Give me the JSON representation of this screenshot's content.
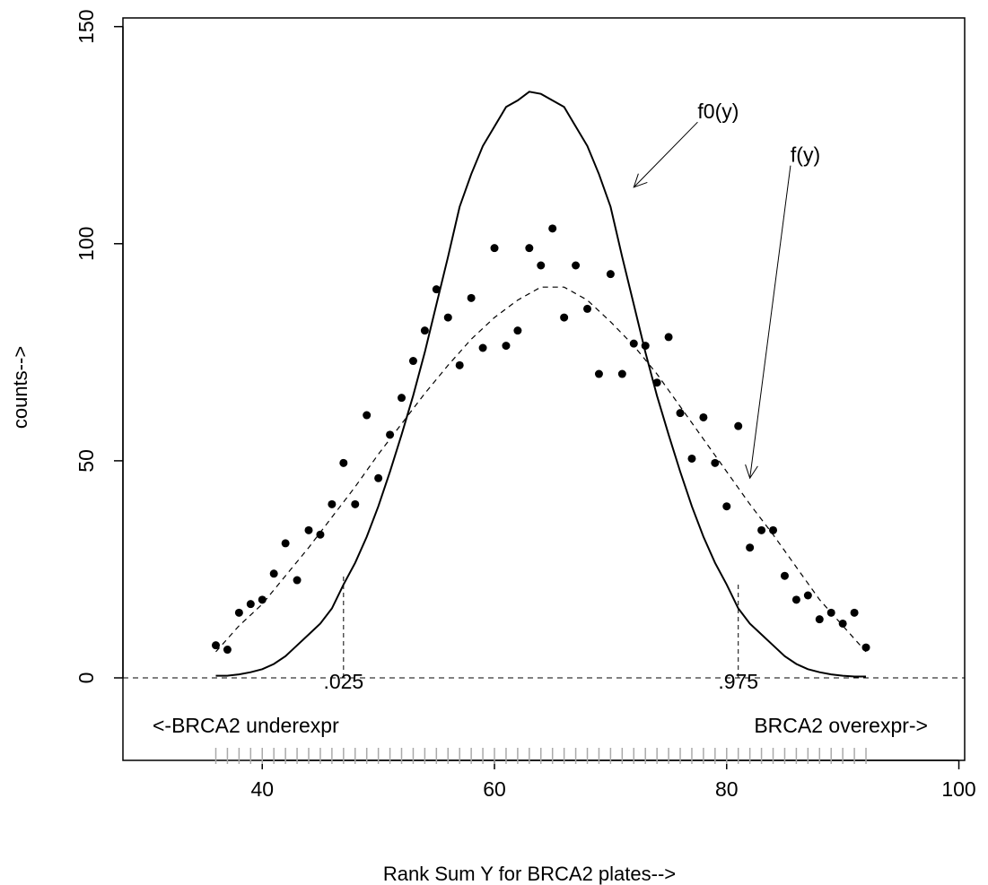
{
  "chart_data": {
    "type": "scatter",
    "title": "",
    "xlabel": "Rank Sum Y for BRCA2 plates-->",
    "ylabel": "counts-->",
    "xlim": [
      28,
      100.5
    ],
    "ylim": [
      -19,
      152
    ],
    "x_ticks": [
      40,
      60,
      80,
      100
    ],
    "y_ticks": [
      0,
      50,
      100,
      150
    ],
    "grid": false,
    "legend": "none",
    "series": [
      {
        "kind": "points",
        "x": [
          36,
          37,
          38,
          39,
          40,
          41,
          42,
          43,
          44,
          45,
          46,
          47,
          48,
          49,
          50,
          51,
          52,
          53,
          54,
          55,
          56,
          57,
          58,
          59,
          60,
          61,
          62,
          63,
          64,
          65,
          66,
          67,
          68,
          69,
          70,
          71,
          72,
          73,
          74,
          75,
          76,
          77,
          78,
          79,
          80,
          81,
          82,
          83,
          84,
          85,
          86,
          87,
          88,
          89,
          90,
          91,
          92
        ],
        "values": [
          7.5,
          6.5,
          15,
          17,
          18,
          24,
          31,
          22.5,
          34,
          33,
          40,
          49.5,
          40,
          60.5,
          46,
          56,
          64.5,
          73,
          80,
          89.5,
          83,
          72,
          87.5,
          76,
          99,
          76.5,
          80,
          99,
          95,
          103.5,
          83,
          95,
          85,
          70,
          93,
          70,
          77,
          76.5,
          68,
          78.5,
          61,
          50.5,
          60,
          49.5,
          39.5,
          58,
          30,
          34,
          34,
          23.5,
          18,
          19,
          13.5,
          15,
          12.5,
          15,
          7
        ]
      },
      {
        "kind": "line-solid",
        "label": "f0(y)",
        "x": [
          36,
          37,
          38,
          39,
          40,
          41,
          42,
          43,
          44,
          45,
          46,
          47,
          48,
          49,
          50,
          51,
          52,
          53,
          54,
          55,
          56,
          57,
          58,
          59,
          60,
          61,
          62,
          63,
          64,
          65,
          66,
          67,
          68,
          69,
          70,
          71,
          72,
          73,
          74,
          75,
          76,
          77,
          78,
          79,
          80,
          81,
          82,
          83,
          84,
          85,
          86,
          87,
          88,
          89,
          90,
          91,
          92
        ],
        "values": [
          0.5,
          0.5,
          0.8,
          1.3,
          2,
          3.2,
          5,
          7.5,
          10,
          12.5,
          16,
          21.5,
          26.5,
          32.5,
          39.5,
          47.5,
          56,
          65,
          75,
          86,
          97,
          108.5,
          116,
          122.5,
          127,
          131.5,
          133,
          135,
          134.5,
          133,
          131.5,
          127,
          122.5,
          116,
          108.5,
          97,
          86,
          75,
          65,
          56,
          47.5,
          39.5,
          32.5,
          26.5,
          21.5,
          16,
          12.5,
          10,
          7.5,
          5,
          3.2,
          2,
          1.3,
          0.8,
          0.5,
          0.3,
          0.3
        ]
      },
      {
        "kind": "line-dashed",
        "label": "f(y)",
        "x": [
          36,
          38,
          40,
          42,
          44,
          46,
          48,
          50,
          52,
          54,
          56,
          58,
          60,
          62,
          64,
          66,
          68,
          70,
          72,
          74,
          76,
          78,
          80,
          82,
          84,
          86,
          88,
          90,
          92
        ],
        "values": [
          6,
          12,
          17,
          23.5,
          30,
          37,
          44,
          51.5,
          58.5,
          65.5,
          72,
          78,
          83,
          87,
          90,
          90,
          87,
          82,
          76.5,
          70,
          62.5,
          55,
          47.5,
          40,
          33,
          25.5,
          18,
          12,
          6
        ]
      }
    ],
    "rug_x": [
      36,
      37,
      38,
      39,
      40,
      41,
      42,
      43,
      44,
      45,
      46,
      47,
      48,
      49,
      50,
      51,
      52,
      53,
      54,
      55,
      56,
      57,
      58,
      59,
      60,
      61,
      62,
      63,
      64,
      65,
      66,
      67,
      68,
      69,
      70,
      71,
      72,
      73,
      74,
      75,
      76,
      77,
      78,
      79,
      80,
      81,
      82,
      83,
      84,
      85,
      86,
      87,
      88,
      89,
      90,
      91,
      92
    ],
    "zero_line": 0,
    "quantile_lines": [
      {
        "x": 47,
        "y_top": 24,
        "label": ".025"
      },
      {
        "x": 81,
        "y_top": 22,
        "label": ".975"
      }
    ],
    "annotations": [
      {
        "text": "f0(y)",
        "arrow_from": [
          77.5,
          128
        ],
        "arrow_to": [
          72,
          113
        ]
      },
      {
        "text": "f(y)",
        "arrow_from": [
          85.5,
          118
        ],
        "arrow_to": [
          82,
          46
        ]
      }
    ],
    "corner_labels": {
      "left": "<-BRCA2 underexpr",
      "right": "BRCA2 overexpr->"
    }
  }
}
